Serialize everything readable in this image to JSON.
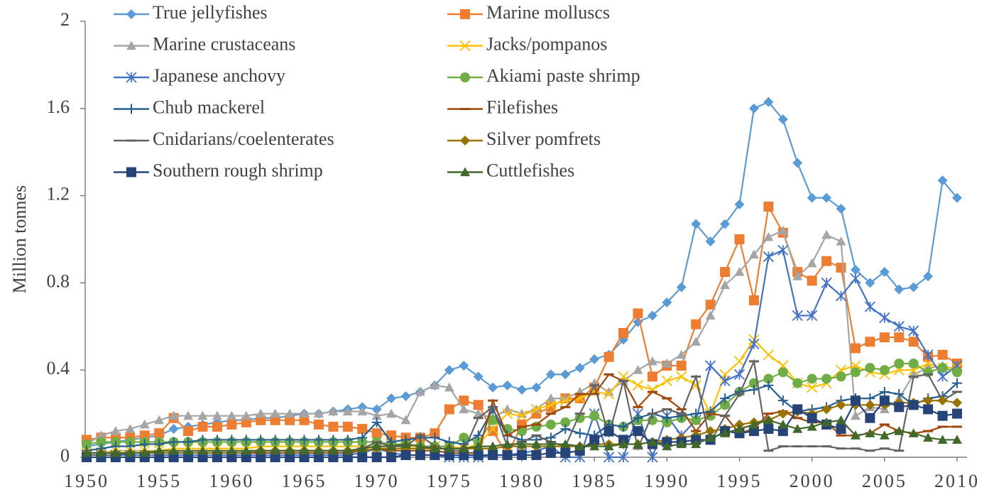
{
  "chart_data": {
    "type": "line",
    "ylabel": "Million tonnes",
    "x": [
      1950,
      1951,
      1952,
      1953,
      1954,
      1955,
      1956,
      1957,
      1958,
      1959,
      1960,
      1961,
      1962,
      1963,
      1964,
      1965,
      1966,
      1967,
      1968,
      1969,
      1970,
      1971,
      1972,
      1973,
      1974,
      1975,
      1976,
      1977,
      1978,
      1979,
      1980,
      1981,
      1982,
      1983,
      1984,
      1985,
      1986,
      1987,
      1988,
      1989,
      1990,
      1991,
      1992,
      1993,
      1994,
      1995,
      1996,
      1997,
      1998,
      1999,
      2000,
      2001,
      2002,
      2003,
      2004,
      2005,
      2006,
      2007,
      2008,
      2009,
      2010
    ],
    "xlim": [
      1950,
      2010
    ],
    "xticks": [
      1950,
      1955,
      1960,
      1965,
      1970,
      1975,
      1980,
      1985,
      1990,
      1995,
      2000,
      2005,
      2010
    ],
    "ylim": [
      0,
      2
    ],
    "yticks": [
      0,
      0.4,
      0.8,
      1.2,
      1.6,
      2
    ],
    "series": [
      {
        "name": "True jellyfishes",
        "color": "#5b9bd5",
        "marker": "diamond",
        "values": [
          0.05,
          0.06,
          0.07,
          0.08,
          0.09,
          0.1,
          0.13,
          0.14,
          0.15,
          0.16,
          0.17,
          0.17,
          0.18,
          0.18,
          0.19,
          0.2,
          0.2,
          0.21,
          0.22,
          0.23,
          0.22,
          0.27,
          0.28,
          0.3,
          0.33,
          0.4,
          0.42,
          0.37,
          0.32,
          0.33,
          0.31,
          0.32,
          0.38,
          0.38,
          0.41,
          0.45,
          0.47,
          0.54,
          0.62,
          0.65,
          0.71,
          0.78,
          1.07,
          0.99,
          1.07,
          1.16,
          1.6,
          1.63,
          1.55,
          1.35,
          1.19,
          1.19,
          1.14,
          0.86,
          0.8,
          0.85,
          0.77,
          0.78,
          0.83,
          1.27,
          1.19
        ]
      },
      {
        "name": "Marine molluscs",
        "color": "#ed7d31",
        "marker": "square",
        "values": [
          0.08,
          0.09,
          0.09,
          0.09,
          0.1,
          0.11,
          0.18,
          0.12,
          0.14,
          0.14,
          0.15,
          0.16,
          0.17,
          0.17,
          0.17,
          0.17,
          0.15,
          0.14,
          0.14,
          0.13,
          0.11,
          0.1,
          0.09,
          0.09,
          0.11,
          0.22,
          0.26,
          0.24,
          0.12,
          0.01,
          0.15,
          0.2,
          0.23,
          0.27,
          0.27,
          0.32,
          0.46,
          0.57,
          0.66,
          0.37,
          0.42,
          0.42,
          0.61,
          0.7,
          0.85,
          1.0,
          0.72,
          1.15,
          1.03,
          0.85,
          0.81,
          0.9,
          0.87,
          0.5,
          0.53,
          0.55,
          0.55,
          0.53,
          0.46,
          0.47,
          0.43
        ]
      },
      {
        "name": "Marine crustaceans",
        "color": "#a5a5a5",
        "marker": "triangle",
        "values": [
          0.06,
          0.1,
          0.12,
          0.13,
          0.15,
          0.17,
          0.19,
          0.19,
          0.19,
          0.19,
          0.19,
          0.19,
          0.2,
          0.2,
          0.2,
          0.2,
          0.2,
          0.21,
          0.21,
          0.21,
          0.19,
          0.2,
          0.17,
          0.3,
          0.33,
          0.32,
          0.22,
          0.2,
          0.18,
          0.22,
          0.2,
          0.22,
          0.27,
          0.27,
          0.3,
          0.34,
          0.3,
          0.35,
          0.4,
          0.44,
          0.43,
          0.47,
          0.53,
          0.65,
          0.79,
          0.85,
          0.93,
          1.01,
          1.04,
          0.83,
          0.89,
          1.02,
          0.99,
          0.19,
          0.23,
          0.22,
          0.27,
          0.38,
          0.41,
          0.42,
          0.4
        ]
      },
      {
        "name": "Jacks/pompanos",
        "color": "#ffc000",
        "marker": "x",
        "values": [
          0.02,
          0.02,
          0.03,
          0.03,
          0.03,
          0.03,
          0.04,
          0.04,
          0.04,
          0.04,
          0.04,
          0.04,
          0.05,
          0.05,
          0.05,
          0.05,
          0.05,
          0.05,
          0.05,
          0.05,
          0.05,
          0.05,
          0.05,
          0.05,
          0.05,
          0.05,
          0.04,
          0.06,
          0.13,
          0.2,
          0.19,
          0.22,
          0.24,
          0.26,
          0.27,
          0.3,
          0.29,
          0.37,
          0.33,
          0.31,
          0.35,
          0.37,
          0.33,
          0.2,
          0.38,
          0.44,
          0.54,
          0.47,
          0.42,
          0.34,
          0.32,
          0.34,
          0.4,
          0.42,
          0.39,
          0.38,
          0.4,
          0.4,
          0.43,
          0.41,
          0.41
        ]
      },
      {
        "name": "Japanese anchovy",
        "color": "#4472c4",
        "marker": "asterisk",
        "values": [
          0.01,
          0.01,
          0.01,
          0.01,
          0.01,
          0.01,
          0.01,
          0.01,
          0.01,
          0.01,
          0.01,
          0.01,
          0.01,
          0.01,
          0.01,
          0.01,
          0.01,
          0.01,
          0.01,
          0.02,
          0.04,
          0.02,
          0.01,
          0.01,
          0.01,
          0,
          0,
          0,
          0.01,
          0.01,
          0.02,
          0.03,
          0.05,
          0,
          0,
          0.2,
          0,
          0,
          0.2,
          0,
          0.19,
          0.1,
          0.17,
          0.42,
          0.35,
          0.38,
          0.52,
          0.92,
          0.95,
          0.65,
          0.65,
          0.8,
          0.74,
          0.82,
          0.69,
          0.64,
          0.6,
          0.58,
          0.47,
          0.37,
          0.42
        ]
      },
      {
        "name": "Akiami paste shrimp",
        "color": "#70ad47",
        "marker": "circle",
        "values": [
          0.06,
          0.07,
          0.07,
          0.07,
          0.07,
          0.07,
          0.07,
          0.07,
          0.07,
          0.07,
          0.07,
          0.07,
          0.07,
          0.07,
          0.07,
          0.07,
          0.07,
          0.07,
          0.07,
          0.07,
          0.07,
          0.06,
          0.06,
          0.05,
          0.05,
          0.05,
          0.09,
          0.07,
          0.17,
          0.13,
          0.12,
          0.14,
          0.15,
          0.16,
          0.18,
          0.19,
          0.15,
          0.14,
          0.17,
          0.17,
          0.16,
          0.18,
          0.17,
          0.19,
          0.24,
          0.3,
          0.34,
          0.36,
          0.39,
          0.34,
          0.36,
          0.36,
          0.37,
          0.39,
          0.41,
          0.4,
          0.43,
          0.43,
          0.39,
          0.41,
          0.39
        ]
      },
      {
        "name": "Chub mackerel",
        "color": "#255e91",
        "marker": "plus",
        "values": [
          0.03,
          0.04,
          0.05,
          0.05,
          0.06,
          0.06,
          0.07,
          0.07,
          0.08,
          0.08,
          0.08,
          0.08,
          0.08,
          0.08,
          0.08,
          0.08,
          0.08,
          0.08,
          0.08,
          0.09,
          0.16,
          0.07,
          0.08,
          0.09,
          0.09,
          0.07,
          0.06,
          0.1,
          0.22,
          0.1,
          0.08,
          0.08,
          0.09,
          0.13,
          0.11,
          0.1,
          0.15,
          0.14,
          0.18,
          0.2,
          0.18,
          0.19,
          0.2,
          0.21,
          0.27,
          0.3,
          0.31,
          0.33,
          0.26,
          0.21,
          0.22,
          0.23,
          0.26,
          0.27,
          0.27,
          0.3,
          0.29,
          0.24,
          0.27,
          0.28,
          0.34
        ]
      },
      {
        "name": "Filefishes",
        "color": "#9e480e",
        "marker": "dash",
        "values": [
          0.01,
          0.01,
          0.01,
          0.02,
          0.02,
          0.02,
          0.02,
          0.02,
          0.02,
          0.02,
          0.02,
          0.02,
          0.02,
          0.02,
          0.02,
          0.02,
          0.02,
          0.02,
          0.02,
          0.03,
          0.04,
          0.03,
          0.03,
          0.03,
          0.03,
          0.02,
          0.02,
          0.02,
          0.26,
          0.1,
          0.14,
          0.15,
          0.2,
          0.23,
          0.29,
          0.29,
          0.38,
          0.35,
          0.23,
          0.3,
          0.27,
          0.22,
          0.12,
          0.2,
          0.19,
          0.11,
          0.13,
          0.2,
          0.21,
          0.18,
          0.16,
          0.16,
          0.1,
          0.1,
          0.11,
          0.15,
          0.12,
          0.11,
          0.12,
          0.14,
          0.14
        ]
      },
      {
        "name": "Cnidarians/coelenterates",
        "color": "#636363",
        "marker": "dash",
        "values": [
          0.01,
          0.01,
          0.01,
          0.02,
          0.02,
          0.02,
          0.02,
          0.02,
          0.02,
          0.02,
          0.02,
          0.02,
          0.03,
          0.03,
          0.03,
          0.03,
          0.03,
          0.03,
          0.03,
          0.04,
          0.07,
          0.05,
          0.05,
          0.1,
          0.05,
          0.03,
          0.03,
          0.18,
          0.23,
          0.05,
          0.07,
          0.1,
          0.07,
          0.05,
          0.2,
          0.33,
          0.1,
          0.35,
          0.04,
          0.2,
          0.22,
          0.2,
          0.37,
          0.07,
          0.19,
          0.29,
          0.44,
          0.03,
          0.05,
          0.05,
          0.05,
          0.05,
          0.04,
          0.04,
          0.03,
          0.04,
          0.03,
          0.37,
          0.38,
          0.26,
          0.3
        ]
      },
      {
        "name": "Silver pomfrets",
        "color": "#997300",
        "marker": "diamond",
        "values": [
          0.02,
          0.02,
          0.02,
          0.02,
          0.02,
          0.02,
          0.02,
          0.02,
          0.02,
          0.02,
          0.02,
          0.02,
          0.03,
          0.03,
          0.03,
          0.03,
          0.03,
          0.03,
          0.03,
          0.03,
          0.04,
          0.04,
          0.04,
          0.04,
          0.04,
          0.04,
          0.04,
          0.04,
          0.04,
          0.05,
          0.05,
          0.05,
          0.05,
          0.05,
          0.05,
          0.06,
          0.06,
          0.06,
          0.06,
          0.07,
          0.08,
          0.09,
          0.1,
          0.12,
          0.13,
          0.15,
          0.16,
          0.17,
          0.2,
          0.21,
          0.2,
          0.22,
          0.24,
          0.24,
          0.24,
          0.24,
          0.25,
          0.25,
          0.26,
          0.26,
          0.25
        ]
      },
      {
        "name": "Southern rough shrimp",
        "color": "#264478",
        "marker": "square",
        "values": [
          0,
          0,
          0,
          0,
          0,
          0,
          0,
          0,
          0,
          0,
          0,
          0,
          0,
          0,
          0,
          0,
          0,
          0,
          0,
          0,
          0,
          0,
          0.01,
          0.01,
          0.01,
          0.01,
          0.01,
          0.01,
          0.01,
          0.01,
          0.01,
          0.01,
          0.02,
          0.02,
          0.03,
          0.08,
          0.12,
          0.08,
          0.12,
          0.06,
          0.07,
          0.07,
          0.08,
          0.08,
          0.12,
          0.11,
          0.12,
          0.13,
          0.12,
          0.22,
          0.18,
          0.15,
          0.13,
          0.26,
          0.18,
          0.26,
          0.23,
          0.24,
          0.22,
          0.19,
          0.2
        ]
      },
      {
        "name": "Cuttlefishes",
        "color": "#43682b",
        "marker": "triangle",
        "values": [
          0.02,
          0.02,
          0.02,
          0.02,
          0.02,
          0.03,
          0.03,
          0.03,
          0.03,
          0.03,
          0.03,
          0.03,
          0.03,
          0.03,
          0.03,
          0.03,
          0.03,
          0.03,
          0.03,
          0.04,
          0.05,
          0.05,
          0.06,
          0.05,
          0.04,
          0.04,
          0.04,
          0.05,
          0.05,
          0.06,
          0.06,
          0.06,
          0.06,
          0.06,
          0.05,
          0.05,
          0.05,
          0.06,
          0.06,
          0.07,
          0.05,
          0.06,
          0.06,
          0.09,
          0.11,
          0.13,
          0.15,
          0.17,
          0.15,
          0.13,
          0.14,
          0.16,
          0.17,
          0.1,
          0.11,
          0.1,
          0.12,
          0.11,
          0.09,
          0.08,
          0.08
        ]
      }
    ],
    "legend": "top-left",
    "grid": false
  }
}
